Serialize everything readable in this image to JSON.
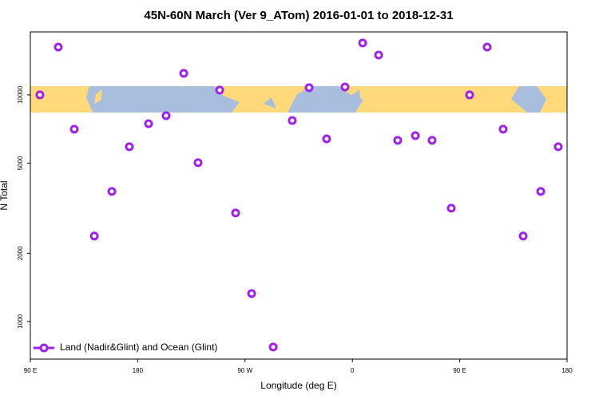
{
  "chart_data": {
    "type": "scatter",
    "title": "45N-60N March (Ver 9_ATom)   2016-01-01 to 2018-12-31",
    "x_label": "Longitude (deg E)",
    "y_label": "N Total",
    "log_y": true,
    "xlim": [
      90,
      540
    ],
    "xticks": [
      {
        "value": 90,
        "label": "90 E"
      },
      180,
      {
        "value": 270,
        "label": "90 W"
      },
      {
        "value": 360,
        "label": "0"
      },
      {
        "value": 450,
        "label": "90 E"
      },
      {
        "value": 540,
        "label": "180"
      }
    ],
    "ylim": [
      682,
      18970
    ],
    "yticks": [
      1000,
      2000,
      5000,
      10000
    ],
    "legend_position": "lower left",
    "series": [
      {
        "name": "Land (Nadir&Glint) and Ocean (Glint)",
        "color": "#a020f0",
        "x": [
          98.0,
          113.4,
          126.8,
          143.6,
          158.3,
          173.0,
          189.1,
          203.8,
          218.6,
          230.6,
          248.7,
          262.1,
          275.5,
          293.6,
          309.6,
          323.7,
          338.4,
          353.8,
          368.6,
          382.0,
          398.0,
          412.8,
          426.8,
          442.9,
          458.3,
          473.0,
          486.4,
          503.2,
          517.9,
          532.6
        ],
        "values": [
          10000,
          16260,
          7058,
          2382,
          3750,
          5904,
          7466,
          8097,
          12450,
          5020,
          10500,
          3013,
          1328,
          771,
          7710,
          10760,
          6400,
          10840,
          16950,
          15000,
          6300,
          6610,
          6300,
          3163,
          10000,
          16260,
          7058,
          2382,
          3750,
          5904
        ]
      }
    ]
  }
}
